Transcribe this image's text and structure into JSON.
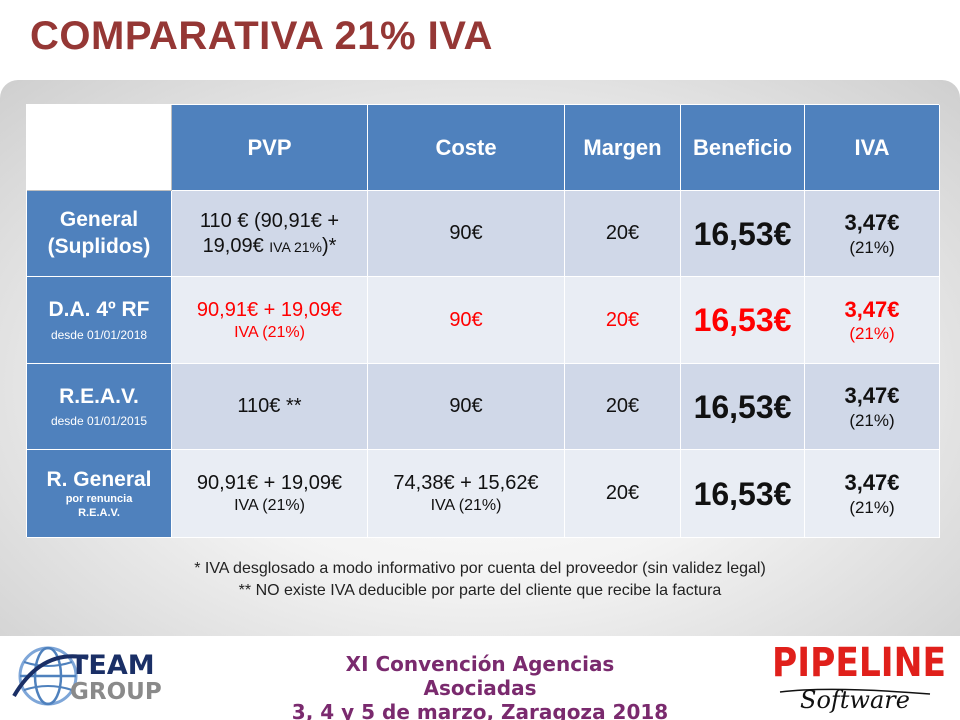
{
  "slide": {
    "title": "COMPARATIVA 21% IVA"
  },
  "table": {
    "headers": [
      "PVP",
      "Coste",
      "Margen",
      "Beneficio",
      "IVA"
    ],
    "rows": [
      {
        "name_line1": "General",
        "name_line2": "(Suplidos)",
        "pvp_line1": "110 € (90,91€ +",
        "pvp_line2a": "19,09€ ",
        "pvp_line2b": "IVA 21%",
        "pvp_line2c": ")*",
        "coste": "90€",
        "margen": "20€",
        "beneficio": "16,53€",
        "iva": "3,47€",
        "iva_pct": "(21%)"
      },
      {
        "name": "D.A. 4º RF",
        "sub": "desde 01/01/2018",
        "pvp_line1": "90,91€ + 19,09€",
        "pvp_line2": "IVA (21%)",
        "coste": "90€",
        "margen": "20€",
        "beneficio": "16,53€",
        "iva": "3,47€",
        "iva_pct": "(21%)",
        "highlight_color": "#ff0000"
      },
      {
        "name": "R.E.A.V.",
        "sub": "desde 01/01/2015",
        "pvp": "110€ **",
        "coste": "90€",
        "margen": "20€",
        "beneficio": "16,53€",
        "iva": "3,47€",
        "iva_pct": "(21%)"
      },
      {
        "name": "R. General",
        "sub1": "por renuncia",
        "sub2": "R.E.A.V.",
        "pvp_line1": "90,91€ + 19,09€",
        "pvp_line2": "IVA (21%)",
        "coste_line1": "74,38€ + 15,62€",
        "coste_line2": "IVA (21%)",
        "margen": "20€",
        "beneficio": "16,53€",
        "iva": "3,47€",
        "iva_pct": "(21%)"
      }
    ]
  },
  "notes": [
    "* IVA desglosado a modo informativo por cuenta del proveedor (sin validez legal)",
    "** NO existe IVA deducible por parte del cliente que recibe la factura"
  ],
  "footer": {
    "line1": "XI Convención Agencias Asociadas",
    "line2": "3, 4 y 5 de marzo, Zaragoza 2018"
  },
  "logos": {
    "left_line1": "TEAM",
    "left_line2": "GROUP",
    "right_line1": "PIPELINE",
    "right_line2": "Software"
  },
  "colors": {
    "title": "#953735",
    "header_bg": "#4f81bd",
    "row_odd": "#d0d8e8",
    "row_even": "#e9edf4",
    "highlight": "#ff0000",
    "footer_text": "#7a2a6e"
  }
}
